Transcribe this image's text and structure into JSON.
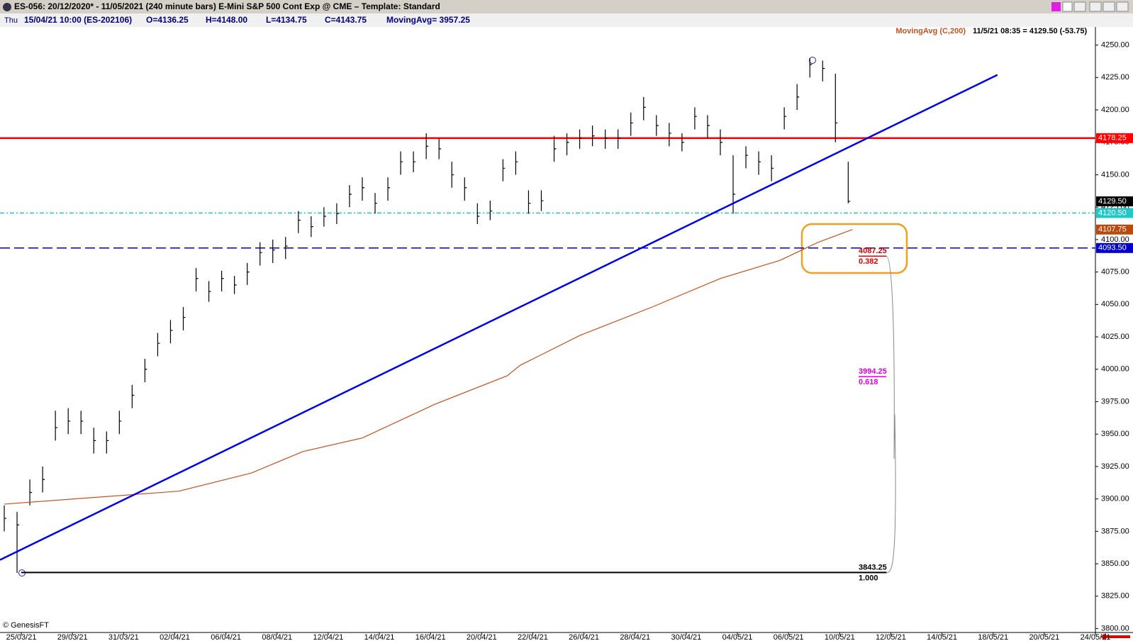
{
  "header": {
    "title": "ES-056:  20/12/2020* - 11/05/2021  (240 minute bars)   E-Mini S&P 500 Cont Exp @ CME  –  Template: Standard",
    "day": "Thu",
    "bar_info": "15/04/21 10:00 (ES-202106)",
    "open": "O=4136.25",
    "high": "H=4148.00",
    "low": "L=4134.75",
    "close": "C=4143.75",
    "moving_avg": "MovingAvg= 3957.25",
    "copyright": "© GenesisFT"
  },
  "chart_data": {
    "type": "ohlc",
    "last_price_note": "11/5/21 08:35 = 4129.50 (-53.75)",
    "bars": {
      "color": "#000000",
      "x": [
        0,
        3,
        6,
        9,
        12,
        15,
        18,
        21,
        24,
        27,
        30,
        33,
        36,
        39,
        42,
        45,
        48,
        51,
        54,
        57,
        60,
        63,
        66,
        69,
        72,
        75,
        78,
        81,
        84,
        87,
        90,
        93,
        96,
        99,
        102,
        105,
        108,
        111,
        114,
        117,
        120,
        123,
        126,
        129,
        132,
        135,
        138,
        141,
        144,
        147,
        150,
        153,
        156,
        159,
        162,
        165,
        168,
        171,
        174,
        177,
        180,
        183,
        186,
        189,
        192,
        195,
        198
      ],
      "high": [
        3895,
        3890,
        3915,
        3925,
        3968,
        3970,
        3968,
        3955,
        3952,
        3968,
        3988,
        4008,
        4028,
        4038,
        4048,
        4078,
        4068,
        4076,
        4072,
        4082,
        4098,
        4100,
        4102,
        4122,
        4118,
        4125,
        4128,
        4142,
        4148,
        4136,
        4148,
        4168,
        4168,
        4182,
        4178,
        4160,
        4148,
        4128,
        4130,
        4162,
        4168,
        4138,
        4138,
        4180,
        4182,
        4185,
        4188,
        4185,
        4185,
        4198,
        4210,
        4196,
        4190,
        4182,
        4202,
        4196,
        4185,
        4165,
        4172,
        4168,
        4165,
        4202,
        4220,
        4240,
        4238,
        4228,
        4160
      ],
      "low": [
        3875,
        3843,
        3895,
        3905,
        3945,
        3950,
        3950,
        3935,
        3935,
        3950,
        3970,
        3990,
        4010,
        4020,
        4030,
        4060,
        4052,
        4060,
        4058,
        4065,
        4080,
        4082,
        4085,
        4105,
        4102,
        4110,
        4112,
        4125,
        4130,
        4120,
        4130,
        4150,
        4152,
        4162,
        4162,
        4140,
        4130,
        4112,
        4115,
        4145,
        4150,
        4120,
        4122,
        4160,
        4165,
        4170,
        4172,
        4170,
        4170,
        4180,
        4192,
        4180,
        4172,
        4168,
        4185,
        4178,
        4165,
        4120,
        4155,
        4150,
        4145,
        4185,
        4200,
        4225,
        4222,
        4175,
        4128
      ],
      "close": [
        3885,
        3880,
        3905,
        3915,
        3955,
        3960,
        3960,
        3945,
        3945,
        3960,
        3980,
        4000,
        4020,
        4030,
        4040,
        4070,
        4060,
        4070,
        4065,
        4075,
        4090,
        4092,
        4095,
        4115,
        4110,
        4118,
        4120,
        4135,
        4140,
        4128,
        4140,
        4160,
        4160,
        4172,
        4170,
        4150,
        4140,
        4118,
        4122,
        4155,
        4160,
        4128,
        4130,
        4170,
        4175,
        4178,
        4180,
        4178,
        4178,
        4190,
        4202,
        4188,
        4182,
        4175,
        4195,
        4188,
        4175,
        4135,
        4165,
        4160,
        4155,
        4195,
        4210,
        4235,
        4232,
        4190,
        4129.5
      ]
    },
    "moving_average": {
      "name": "MovingAvg (C,200)",
      "color": "#c8501e",
      "x": [
        0,
        41,
        58,
        70,
        84,
        101,
        118,
        121,
        135,
        152,
        168,
        182,
        191,
        199
      ],
      "values": [
        3896,
        3906,
        3920,
        3936.5,
        3947,
        3973,
        3995,
        4003,
        4026,
        4048,
        4070,
        4084,
        4098,
        4107.75
      ]
    },
    "trendline": {
      "color": "#0000ee",
      "x": [
        -1,
        233
      ],
      "values": [
        3853,
        4227
      ]
    },
    "levels": [
      {
        "value": 4178.25,
        "label": "4178.25",
        "color": "#ff0000",
        "style": "solid"
      },
      {
        "value": 4129.5,
        "label": "4129.50",
        "color": "#000000",
        "style": "none"
      },
      {
        "value": 4120.5,
        "label": "4120.50",
        "color": "#22c8c8",
        "style": "dashdot"
      },
      {
        "value": 4107.75,
        "label": "4107.75",
        "color": "#b84a10",
        "style": "none"
      },
      {
        "value": 4093.5,
        "label": "4093.50",
        "color": "#0000cc",
        "style": "dash"
      }
    ],
    "fib_x": [
      4,
      207
    ],
    "fib": [
      {
        "price": 4087.25,
        "ratio": 0.382,
        "color": "#e00000"
      },
      {
        "price": 3994.25,
        "ratio": 0.618,
        "color": "#e000e0"
      },
      {
        "price": 3843.25,
        "ratio": {
          "value": 1,
          "label": "1.000"
        },
        "color": "#000000"
      }
    ],
    "xlim": [
      -1,
      256
    ],
    "ylim": [
      3797,
      4264
    ],
    "xticks": [
      {
        "value": 4,
        "label": "25/03/21"
      },
      {
        "value": 16,
        "label": "29/03/21"
      },
      {
        "value": 28,
        "label": "31/03/21"
      },
      {
        "value": 40,
        "label": "02/04/21"
      },
      {
        "value": 52,
        "label": "06/04/21"
      },
      {
        "value": 64,
        "label": "08/04/21"
      },
      {
        "value": 76,
        "label": "12/04/21"
      },
      {
        "value": 88,
        "label": "14/04/21"
      },
      {
        "value": 100,
        "label": "16/04/21"
      },
      {
        "value": 112,
        "label": "20/04/21"
      },
      {
        "value": 124,
        "label": "22/04/21"
      },
      {
        "value": 136,
        "label": "26/04/21"
      },
      {
        "value": 148,
        "label": "28/04/21"
      },
      {
        "value": 160,
        "label": "30/04/21"
      },
      {
        "value": 172,
        "label": "04/05/21"
      },
      {
        "value": 184,
        "label": "06/05/21"
      },
      {
        "value": 196,
        "label": "10/05/21"
      },
      {
        "value": 208,
        "label": "12/05/21"
      },
      {
        "value": 220,
        "label": "14/05/21"
      },
      {
        "value": 232,
        "label": "18/05/21"
      },
      {
        "value": 244,
        "label": "20/05/21"
      },
      {
        "value": 256,
        "label": "24/05/21"
      }
    ],
    "yticks": [
      {
        "value": 3800,
        "label": "3800.00"
      },
      {
        "value": 3825,
        "label": "3825.00"
      },
      {
        "value": 3850,
        "label": "3850.00"
      },
      {
        "value": 3875,
        "label": "3875.00"
      },
      {
        "value": 3900,
        "label": "3900.00"
      },
      {
        "value": 3925,
        "label": "3925.00"
      },
      {
        "value": 3950,
        "label": "3950.00"
      },
      {
        "value": 3975,
        "label": "3975.00"
      },
      {
        "value": 4000,
        "label": "4000.00"
      },
      {
        "value": 4025,
        "label": "4025.00"
      },
      {
        "value": 4050,
        "label": "4050.00"
      },
      {
        "value": 4075,
        "label": "4075.00"
      },
      {
        "value": 4100,
        "label": "4100.00"
      },
      {
        "value": 4125,
        "label": "4125.00"
      },
      {
        "value": 4150,
        "label": "4150.00"
      },
      {
        "value": 4175,
        "label": "4175.00"
      },
      {
        "value": 4200,
        "label": "4200.00"
      },
      {
        "value": 4225,
        "label": "4225.00"
      },
      {
        "value": 4250,
        "label": "4250.00"
      }
    ]
  }
}
